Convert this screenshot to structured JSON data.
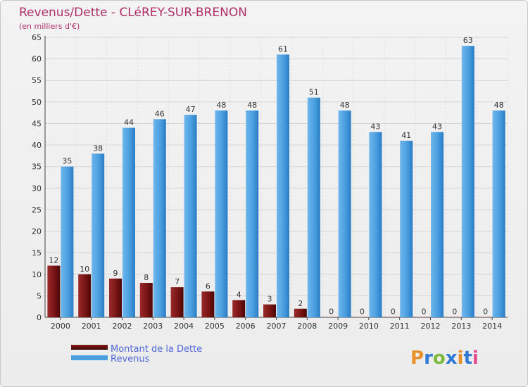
{
  "chart_data": {
    "type": "bar",
    "title": "Revenus/Dette - CLéREY-SUR-BRENON",
    "subtitle": "(en milliers d'€)",
    "xlabel": "",
    "ylabel": "",
    "ylim": [
      0,
      65
    ],
    "yticks": [
      0,
      5,
      10,
      15,
      20,
      25,
      30,
      35,
      40,
      45,
      50,
      55,
      60,
      65
    ],
    "grid": true,
    "legend_position": "bottom-left",
    "categories": [
      "2000",
      "2001",
      "2002",
      "2003",
      "2004",
      "2005",
      "2006",
      "2007",
      "2008",
      "2009",
      "2010",
      "2011",
      "2012",
      "2013",
      "2014"
    ],
    "series": [
      {
        "name": "Montant de la Dette",
        "color": "#8b1a1a",
        "values": [
          12,
          10,
          9,
          8,
          7,
          6,
          4,
          3,
          2,
          0,
          0,
          0,
          0,
          0,
          0
        ]
      },
      {
        "name": "Revenus",
        "color": "#4a9fe0",
        "values": [
          35,
          38,
          44,
          46,
          47,
          48,
          48,
          61,
          51,
          48,
          43,
          41,
          43,
          63,
          48
        ]
      }
    ]
  },
  "logo": {
    "letters": [
      "P",
      "r",
      "o",
      "x",
      "i",
      "t",
      "i"
    ],
    "colors": [
      "#e8912a",
      "#2f7ad6",
      "#7cba3a",
      "#2f7ad6",
      "#e8912a",
      "#2f7ad6",
      "#e84a8a"
    ]
  }
}
